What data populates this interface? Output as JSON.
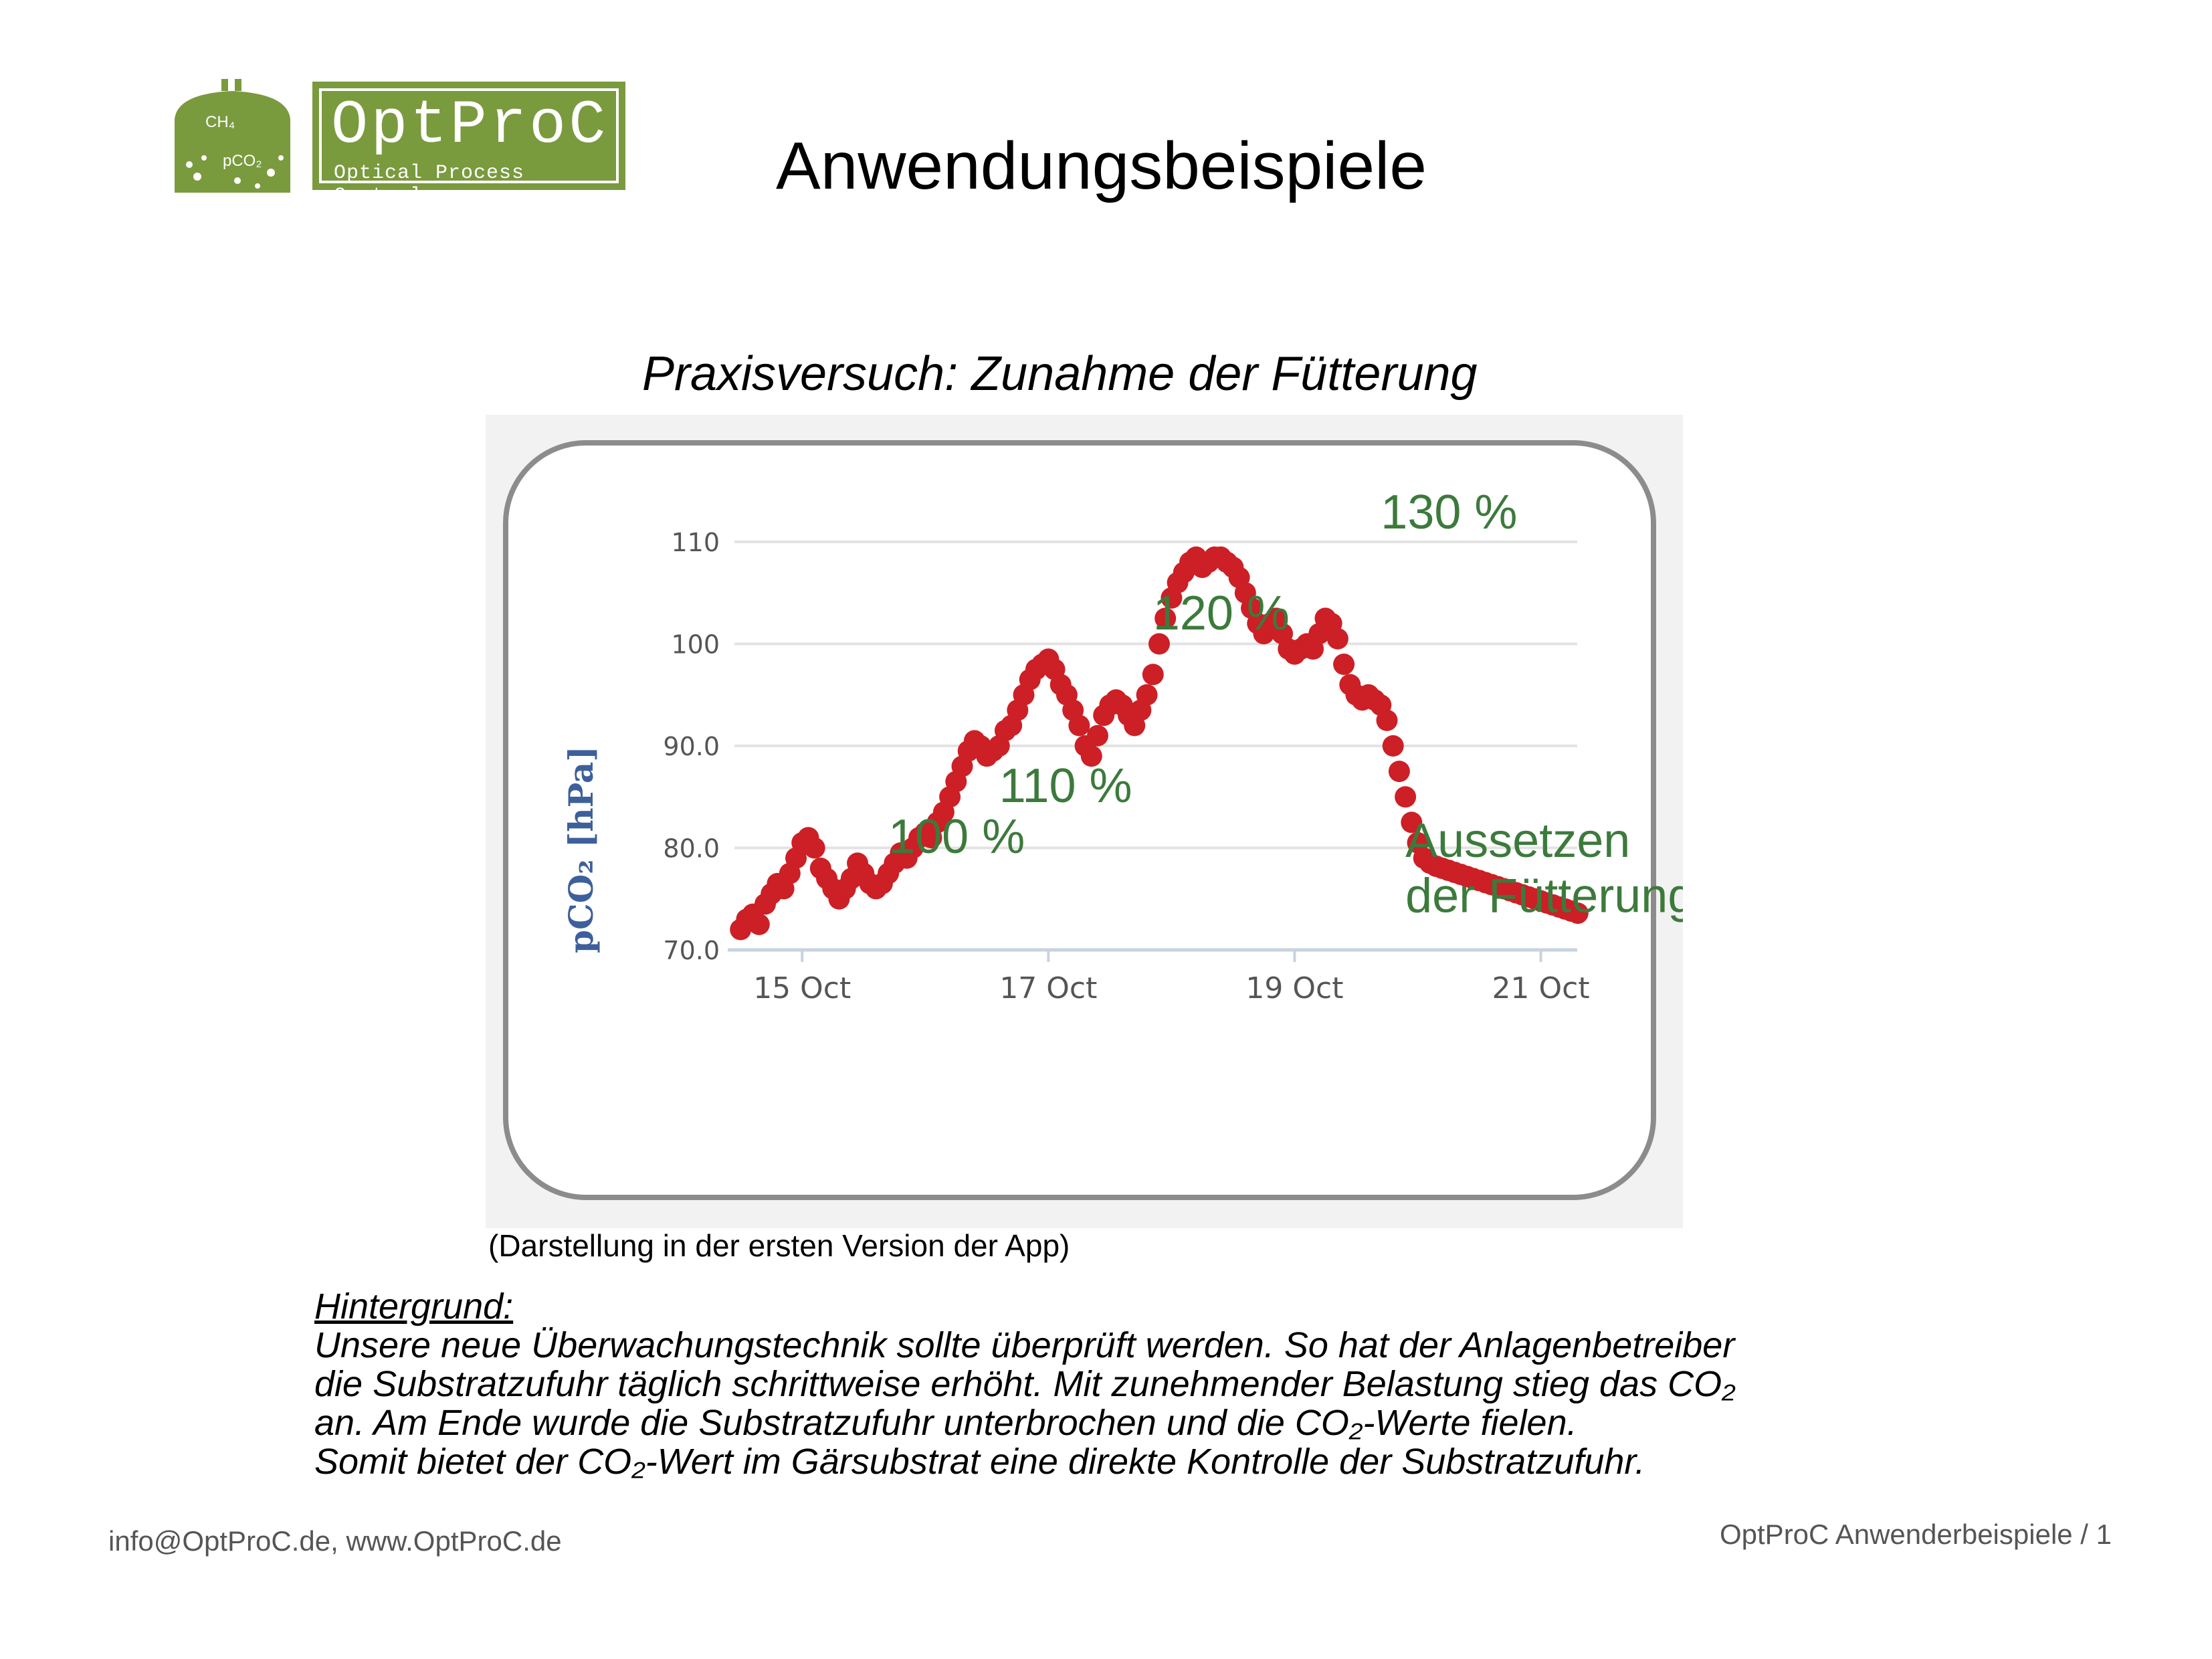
{
  "logo": {
    "tank_label_top": "CH₄",
    "tank_label_bottom": "pCO₂",
    "name": "OptProC",
    "subtitle": "Optical Process Control",
    "color": "#7a9a3e"
  },
  "page_title": "Anwendungsbeispiele",
  "chart_title": "Praxisversuch: Zunahme der Fütterung",
  "chart_data": {
    "type": "scatter",
    "ylabel": "pCO₂ [hPa]",
    "xlabel": "",
    "y_ticks": [
      "110",
      "100",
      "90.0",
      "80.0",
      "70.0"
    ],
    "y_tick_values": [
      110,
      100,
      90,
      80,
      70
    ],
    "ylim": [
      70,
      110
    ],
    "x_ticks": [
      "15 Oct",
      "17 Oct",
      "19 Oct",
      "21 Oct"
    ],
    "x_tick_values": [
      15,
      17,
      19,
      21
    ],
    "xlim": [
      14.45,
      21.35
    ],
    "grid": true,
    "point_color": "#cc1f26",
    "annotation_color": "#3c7a3c",
    "annotations": [
      {
        "text": "100 %",
        "x": 15.7,
        "y": 79.5
      },
      {
        "text": "110 %",
        "x": 16.6,
        "y": 84.5
      },
      {
        "text": "120 %",
        "x": 17.85,
        "y": 101.4
      },
      {
        "text": "130 %",
        "x": 19.7,
        "y": 111.3
      },
      {
        "text": "Aussetzen",
        "x": 19.9,
        "y": 79.1
      },
      {
        "text": "der Fütterung",
        "x": 19.9,
        "y": 73.7
      }
    ],
    "x": [
      14.5,
      14.55,
      14.6,
      14.65,
      14.7,
      14.75,
      14.8,
      14.85,
      14.9,
      14.95,
      15.0,
      15.05,
      15.1,
      15.15,
      15.2,
      15.25,
      15.3,
      15.35,
      15.4,
      15.45,
      15.5,
      15.55,
      15.6,
      15.65,
      15.7,
      15.75,
      15.8,
      15.85,
      15.9,
      15.95,
      16.0,
      16.05,
      16.1,
      16.15,
      16.2,
      16.25,
      16.3,
      16.35,
      16.4,
      16.45,
      16.5,
      16.55,
      16.6,
      16.65,
      16.7,
      16.75,
      16.8,
      16.85,
      16.9,
      16.95,
      17.0,
      17.05,
      17.1,
      17.15,
      17.2,
      17.25,
      17.3,
      17.35,
      17.4,
      17.45,
      17.5,
      17.55,
      17.6,
      17.65,
      17.7,
      17.75,
      17.8,
      17.85,
      17.9,
      17.95,
      18.0,
      18.05,
      18.1,
      18.15,
      18.2,
      18.25,
      18.3,
      18.35,
      18.4,
      18.45,
      18.5,
      18.55,
      18.6,
      18.65,
      18.7,
      18.75,
      18.8,
      18.85,
      18.9,
      18.95,
      19.0,
      19.05,
      19.1,
      19.15,
      19.2,
      19.25,
      19.3,
      19.35,
      19.4,
      19.45,
      19.5,
      19.55,
      19.6,
      19.65,
      19.7,
      19.75,
      19.8,
      19.85,
      19.9,
      19.95,
      20.0,
      20.05,
      20.1,
      20.15,
      20.2,
      20.25,
      20.3,
      20.35,
      20.4,
      20.45,
      20.5,
      20.55,
      20.6,
      20.65,
      20.7,
      20.75,
      20.8,
      20.85,
      20.9,
      20.95,
      21.0,
      21.05,
      21.1,
      21.15,
      21.2,
      21.25,
      21.3
    ],
    "y": [
      72.0,
      73.0,
      73.5,
      72.5,
      74.5,
      75.5,
      76.5,
      76.0,
      77.5,
      79.0,
      80.5,
      81.0,
      80.0,
      78.0,
      77.0,
      76.0,
      75.0,
      76.0,
      77.0,
      78.5,
      77.5,
      76.5,
      76.0,
      76.5,
      77.5,
      78.5,
      79.5,
      79.0,
      80.0,
      81.0,
      81.5,
      81.0,
      82.5,
      83.5,
      85.0,
      86.5,
      88.0,
      89.5,
      90.5,
      90.0,
      89.0,
      89.5,
      90.0,
      91.5,
      92.0,
      93.5,
      95.0,
      96.5,
      97.5,
      98.0,
      98.5,
      97.5,
      96.0,
      95.0,
      93.5,
      92.0,
      90.0,
      89.0,
      91.0,
      93.0,
      94.0,
      94.5,
      94.0,
      93.0,
      92.0,
      93.5,
      95.0,
      97.0,
      100.0,
      102.5,
      104.5,
      106.0,
      107.0,
      108.0,
      108.5,
      107.5,
      108.0,
      108.5,
      108.5,
      108.0,
      107.5,
      106.5,
      105.0,
      103.5,
      102.0,
      101.0,
      102.0,
      102.5,
      101.0,
      99.5,
      99.0,
      99.5,
      100.0,
      99.5,
      101.0,
      102.5,
      102.0,
      100.5,
      98.0,
      96.0,
      95.0,
      94.5,
      95.0,
      94.5,
      94.0,
      92.5,
      90.0,
      87.5,
      85.0,
      82.5,
      80.5,
      79.0,
      78.5,
      78.2,
      78.0,
      77.8,
      77.6,
      77.4,
      77.2,
      77.0,
      76.8,
      76.6,
      76.4,
      76.2,
      76.0,
      75.8,
      75.6,
      75.4,
      75.2,
      75.0,
      74.8,
      74.6,
      74.4,
      74.2,
      74.0,
      73.8,
      73.6
    ]
  },
  "caption": "(Darstellung in der ersten Version der App)",
  "background": {
    "heading": "Hintergrund:",
    "lines": [
      "Unsere neue Überwachungstechnik sollte überprüft werden. So hat der Anlagenbetreiber",
      "die Substratzufuhr täglich schrittweise erhöht. Mit zunehmender Belastung stieg das CO₂",
      "an. Am Ende wurde die Substratzufuhr unterbrochen und die CO₂-Werte fielen.",
      "Somit bietet der CO₂-Wert im Gärsubstrat eine direkte Kontrolle der Substratzufuhr."
    ]
  },
  "footer": {
    "contact": "info@OptProC.de, www.OptProC.de",
    "page_label": "OptProC Anwenderbeispiele / 1"
  }
}
